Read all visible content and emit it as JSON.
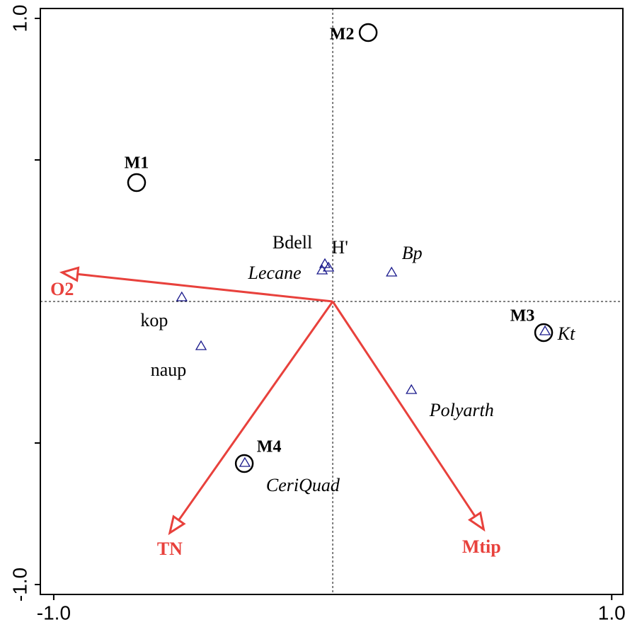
{
  "chart_data": {
    "type": "biplot",
    "xlim": [
      -1.048,
      1.04
    ],
    "ylim": [
      -1.035,
      1.035
    ],
    "xticks": [
      {
        "value": -1,
        "label": "-1.0"
      },
      {
        "value": 1,
        "label": "1.0"
      }
    ],
    "yticks": [
      {
        "value": -1,
        "label": "-1.0"
      },
      {
        "value": 1,
        "label": "1.0"
      }
    ],
    "yminor_ticks": [
      -0.5,
      0.5
    ],
    "zero_lines": true,
    "sites": {
      "color": "#000000",
      "names": [
        "M1",
        "M2",
        "M3",
        "M4"
      ],
      "x": [
        -0.703,
        0.127,
        0.756,
        -0.317
      ],
      "y": [
        0.42,
        0.95,
        -0.11,
        -0.5725
      ]
    },
    "species": {
      "color": "#1a1a8c",
      "names": [
        "Bdell",
        "H'",
        "Lecane",
        "Bp",
        "kop",
        "naup",
        "Kt",
        "Polyarth",
        "CeriQuad"
      ],
      "italic": [
        false,
        false,
        true,
        true,
        false,
        false,
        true,
        true,
        true
      ],
      "x": [
        -0.028,
        -0.015,
        -0.038,
        0.211,
        -0.541,
        -0.472,
        0.761,
        0.282,
        -0.315
      ],
      "y": [
        0.1325,
        0.12,
        0.11,
        0.1025,
        0.015,
        -0.1575,
        -0.105,
        -0.3125,
        -0.57
      ]
    },
    "arrows": {
      "color": "#e8413c",
      "names": [
        "O2",
        "TN",
        "Mtip"
      ],
      "x": [
        -0.97,
        -0.584,
        0.541
      ],
      "y": [
        0.1025,
        -0.8175,
        -0.805
      ]
    }
  }
}
